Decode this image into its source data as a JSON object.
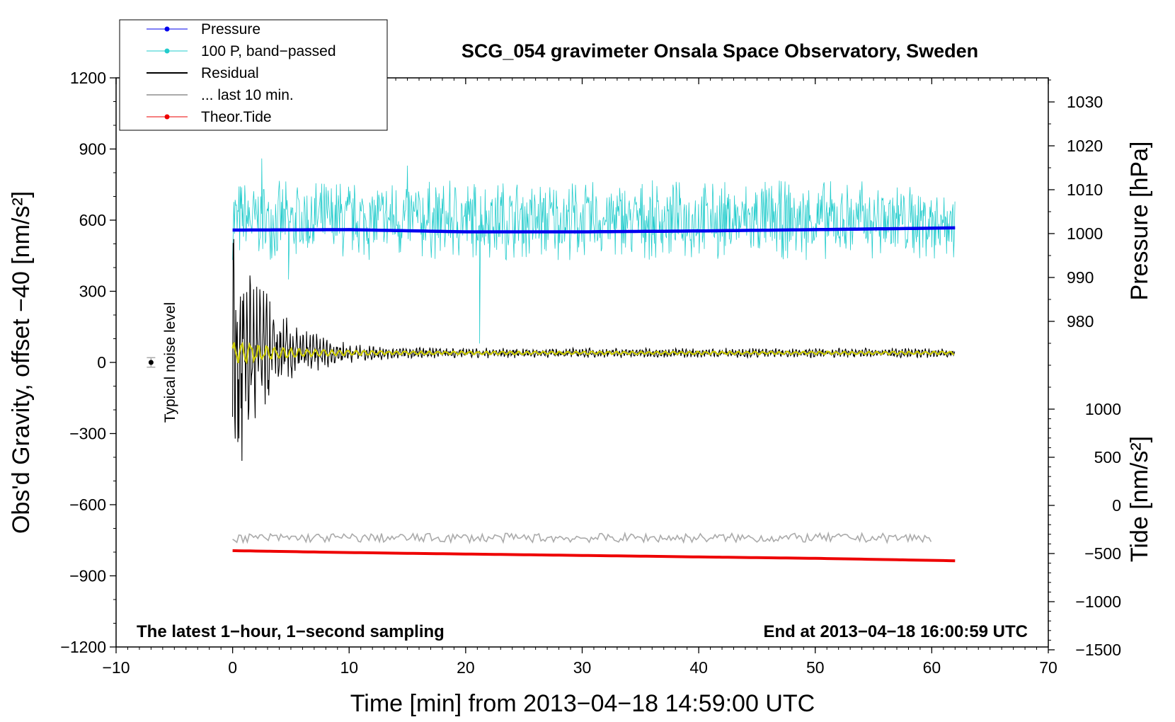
{
  "chart_data": {
    "type": "line",
    "title": "SCG_054 gravimeter Onsala Space Observatory, Sweden",
    "xlabel": "Time [min] from 2013−04−18 14:59:00 UTC",
    "ylabel_left": "Obs'd Gravity, offset −40 [nm/s²]",
    "ylabel_right_top": "Pressure [hPa]",
    "ylabel_right_bottom": "Tide [nm/s²]",
    "xlim": [
      -10,
      70
    ],
    "ylim_left": [
      -1200,
      1200
    ],
    "ylim_pressure": [
      960,
      1035
    ],
    "ylim_tide": [
      -1500,
      1000
    ],
    "x_ticks": [
      -10,
      0,
      10,
      20,
      30,
      40,
      50,
      60,
      70
    ],
    "x_tick_labels": [
      "−10",
      "0",
      "10",
      "20",
      "30",
      "40",
      "50",
      "60",
      "70"
    ],
    "y_left_ticks": [
      1200,
      900,
      600,
      300,
      0,
      -300,
      -600,
      -900,
      -1200
    ],
    "y_left_tick_labels": [
      "1200",
      "900",
      "600",
      "300",
      "0",
      "−300",
      "−600",
      "−900",
      "−1200"
    ],
    "pressure_ticks": [
      1030,
      1020,
      1010,
      1000,
      990,
      980
    ],
    "pressure_tick_labels": [
      "1030",
      "1020",
      "1010",
      "1000",
      "990",
      "980"
    ],
    "tide_ticks": [
      1000,
      500,
      0,
      -500,
      -1000,
      -1500
    ],
    "tide_tick_labels": [
      "1000",
      "500",
      "0",
      "−500",
      "−1000",
      "−1500"
    ],
    "legend": [
      {
        "label": "Pressure",
        "color": "#0000ee",
        "marker": true
      },
      {
        "label": "100 P, band−passed",
        "color": "#22cccc",
        "marker": true
      },
      {
        "label": "Residual",
        "color": "#000000",
        "marker": false
      },
      {
        "label": "... last 10 min.",
        "color": "#aaaaaa",
        "marker": false
      },
      {
        "label": "Theor.Tide",
        "color": "#ee0000",
        "marker": true
      }
    ],
    "series": [
      {
        "name": "Pressure",
        "axis": "pressure",
        "color": "#0000ee",
        "x": [
          0,
          10,
          20,
          30,
          40,
          50,
          62
        ],
        "values": [
          1000.8,
          1000.9,
          1000.4,
          1000.4,
          1000.6,
          1000.9,
          1001.3
        ]
      },
      {
        "name": "100 P, band−passed",
        "axis": "left",
        "color": "#22cccc",
        "x_range": [
          0,
          62
        ],
        "center": 600,
        "amplitude": 120,
        "extremes": [
          {
            "x": 2.5,
            "value": 860
          },
          {
            "x": 15,
            "value": 830
          },
          {
            "x": 4.8,
            "value": 350
          },
          {
            "x": 21.2,
            "value": 80
          }
        ]
      },
      {
        "name": "Residual",
        "axis": "left",
        "color": "#000000",
        "x_range": [
          0,
          62
        ],
        "center": 40,
        "initial_amplitude": 480,
        "extremes": [
          {
            "x": 0.1,
            "value": 520
          },
          {
            "x": 0.8,
            "value": -415
          }
        ]
      },
      {
        "name": "... last 10 min.",
        "axis": "left",
        "color": "#aaaaaa",
        "x_range": [
          0,
          60
        ],
        "center": -740,
        "amplitude": 12
      },
      {
        "name": "Theor.Tide",
        "axis": "tide",
        "color": "#ee0000",
        "x": [
          0,
          10,
          20,
          30,
          40,
          50,
          62
        ],
        "values": [
          -470,
          -490,
          -505,
          -520,
          -535,
          -550,
          -575
        ]
      },
      {
        "name": "Smoothed residual",
        "axis": "left",
        "color": "#cccc00",
        "x_range": [
          0,
          62
        ],
        "center": 40
      }
    ],
    "noise_marker": {
      "label": "Typical noise level",
      "x": -7,
      "value": 0,
      "error": 20
    },
    "annotations": {
      "bottom_left": "The latest 1−hour, 1−second sampling",
      "bottom_right": "End at 2013−04−18 16:00:59 UTC"
    }
  }
}
